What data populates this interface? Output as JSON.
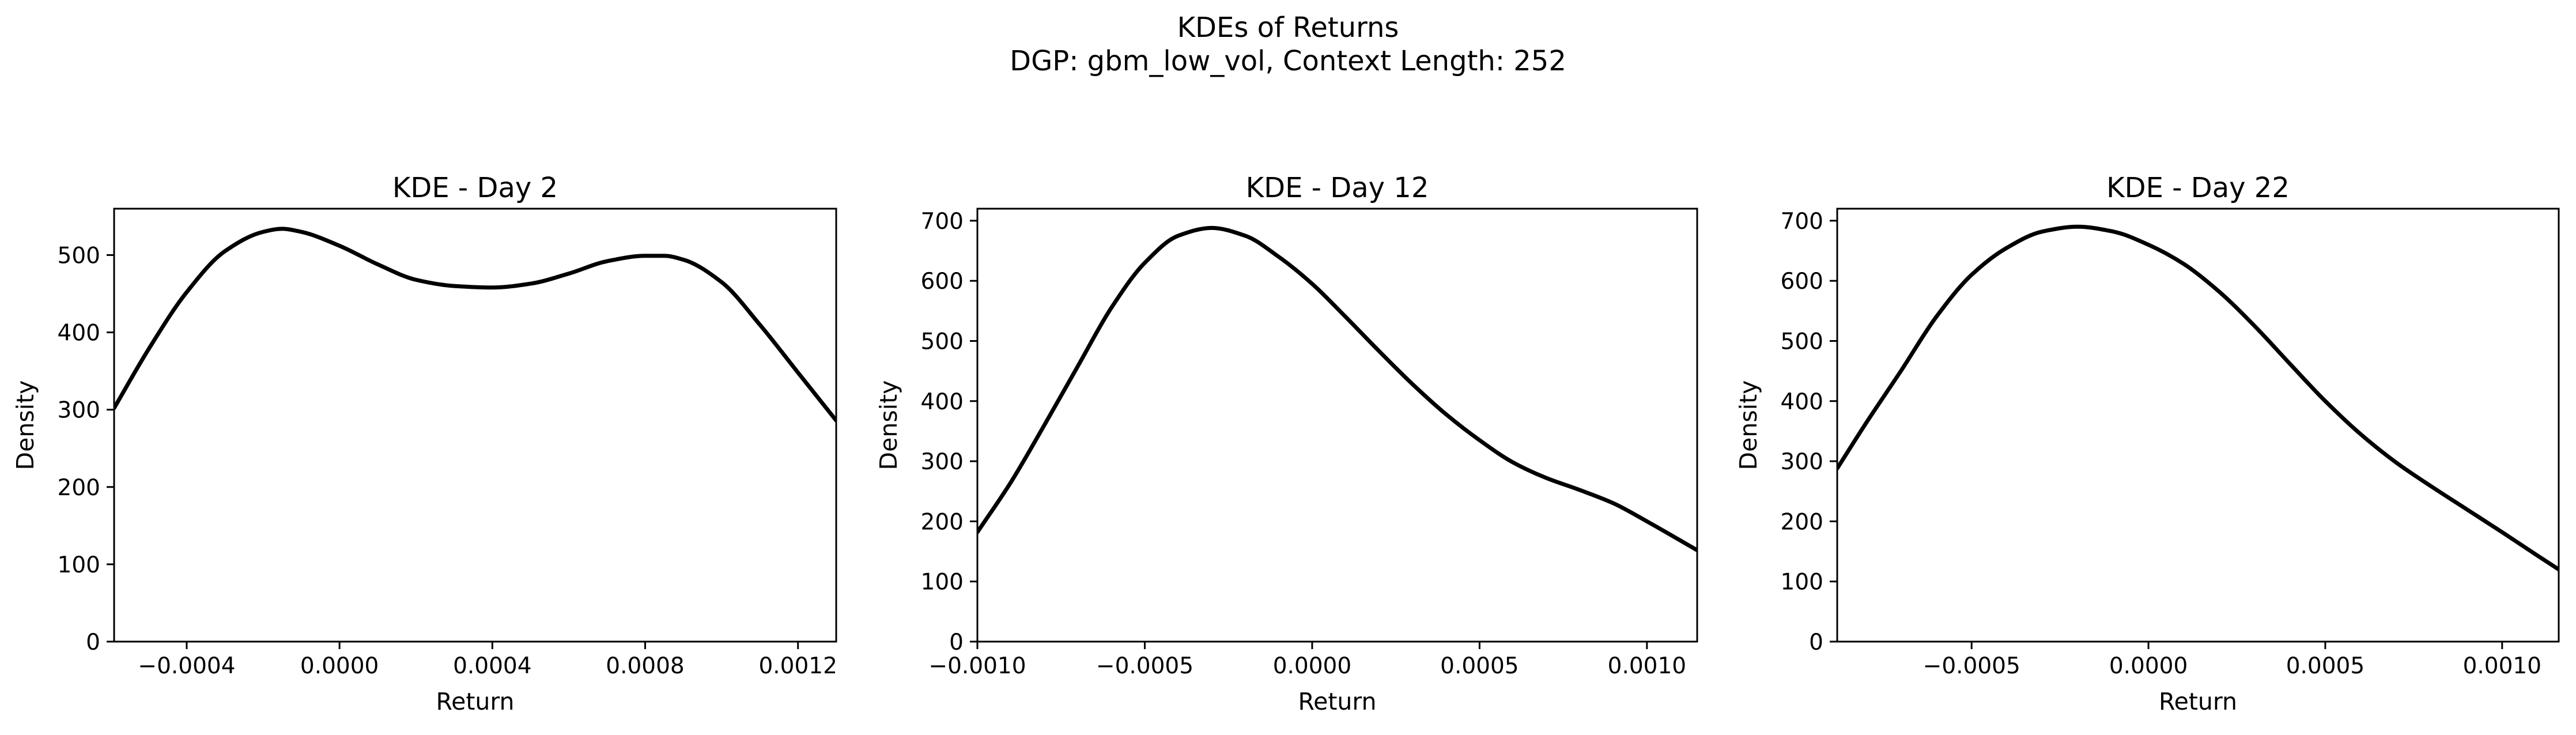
{
  "figure": {
    "title_line1": "KDEs of Returns",
    "title_line2": "DGP: gbm_low_vol, Context Length: 252"
  },
  "chart_data": [
    {
      "type": "line",
      "title": "KDE - Day 2",
      "xlabel": "Return",
      "ylabel": "Density",
      "xlim": [
        -0.00059,
        0.0013
      ],
      "ylim": [
        0,
        560
      ],
      "xticks": [
        -0.0004,
        0.0,
        0.0004,
        0.0008,
        0.0012
      ],
      "xtick_labels": [
        "−0.0004",
        "0.0000",
        "0.0004",
        "0.0008",
        "0.0012"
      ],
      "yticks": [
        0,
        100,
        200,
        300,
        400,
        500
      ],
      "ytick_labels": [
        "0",
        "100",
        "200",
        "300",
        "400",
        "500"
      ],
      "line_color": "#000000",
      "grid": false,
      "x": [
        -0.00059,
        -0.0005,
        -0.0004,
        -0.0003,
        -0.0002,
        -0.00015,
        -0.0001,
        0.0,
        0.0001,
        0.0002,
        0.0003,
        0.0004,
        0.0005,
        0.0006,
        0.0007,
        0.0008,
        0.00085,
        0.0009,
        0.001,
        0.0011,
        0.0012,
        0.0013
      ],
      "y": [
        302,
        378,
        452,
        505,
        530,
        534,
        530,
        512,
        488,
        468,
        460,
        458,
        463,
        476,
        492,
        499,
        499,
        494,
        465,
        410,
        348,
        286
      ]
    },
    {
      "type": "line",
      "title": "KDE - Day 12",
      "xlabel": "Return",
      "ylabel": "Density",
      "xlim": [
        -0.001,
        0.00115
      ],
      "ylim": [
        0,
        720
      ],
      "xticks": [
        -0.001,
        -0.0005,
        0.0,
        0.0005,
        0.001
      ],
      "xtick_labels": [
        "−0.0010",
        "−0.0005",
        "0.0000",
        "0.0005",
        "0.0010"
      ],
      "yticks": [
        0,
        100,
        200,
        300,
        400,
        500,
        600,
        700
      ],
      "ytick_labels": [
        "0",
        "100",
        "200",
        "300",
        "400",
        "500",
        "600",
        "700"
      ],
      "line_color": "#000000",
      "grid": false,
      "x": [
        -0.001,
        -0.0009,
        -0.0008,
        -0.0007,
        -0.0006,
        -0.0005,
        -0.0004,
        -0.0003,
        -0.0002,
        -0.0001,
        0.0,
        0.0001,
        0.0002,
        0.0003,
        0.0004,
        0.0005,
        0.0006,
        0.0007,
        0.0008,
        0.0009,
        0.001,
        0.00115
      ],
      "y": [
        182,
        265,
        360,
        458,
        555,
        630,
        675,
        688,
        675,
        640,
        595,
        540,
        483,
        428,
        378,
        335,
        298,
        272,
        252,
        230,
        200,
        152
      ]
    },
    {
      "type": "line",
      "title": "KDE - Day 22",
      "xlabel": "Return",
      "ylabel": "Density",
      "xlim": [
        -0.00088,
        0.00116
      ],
      "ylim": [
        0,
        720
      ],
      "xticks": [
        -0.0005,
        0.0,
        0.0005,
        0.001
      ],
      "xtick_labels": [
        "−0.0005",
        "0.0000",
        "0.0005",
        "0.0010"
      ],
      "yticks": [
        0,
        100,
        200,
        300,
        400,
        500,
        600,
        700
      ],
      "ytick_labels": [
        "0",
        "100",
        "200",
        "300",
        "400",
        "500",
        "600",
        "700"
      ],
      "line_color": "#000000",
      "grid": false,
      "x": [
        -0.00088,
        -0.0008,
        -0.0007,
        -0.0006,
        -0.0005,
        -0.0004,
        -0.0003,
        -0.0002,
        -0.0001,
        0.0,
        0.0001,
        0.0002,
        0.0003,
        0.0004,
        0.0005,
        0.0006,
        0.0007,
        0.0008,
        0.0009,
        0.001,
        0.0011,
        0.00116
      ],
      "y": [
        288,
        362,
        450,
        540,
        610,
        655,
        682,
        690,
        682,
        660,
        628,
        582,
        525,
        462,
        400,
        345,
        298,
        258,
        220,
        182,
        143,
        120
      ]
    }
  ]
}
